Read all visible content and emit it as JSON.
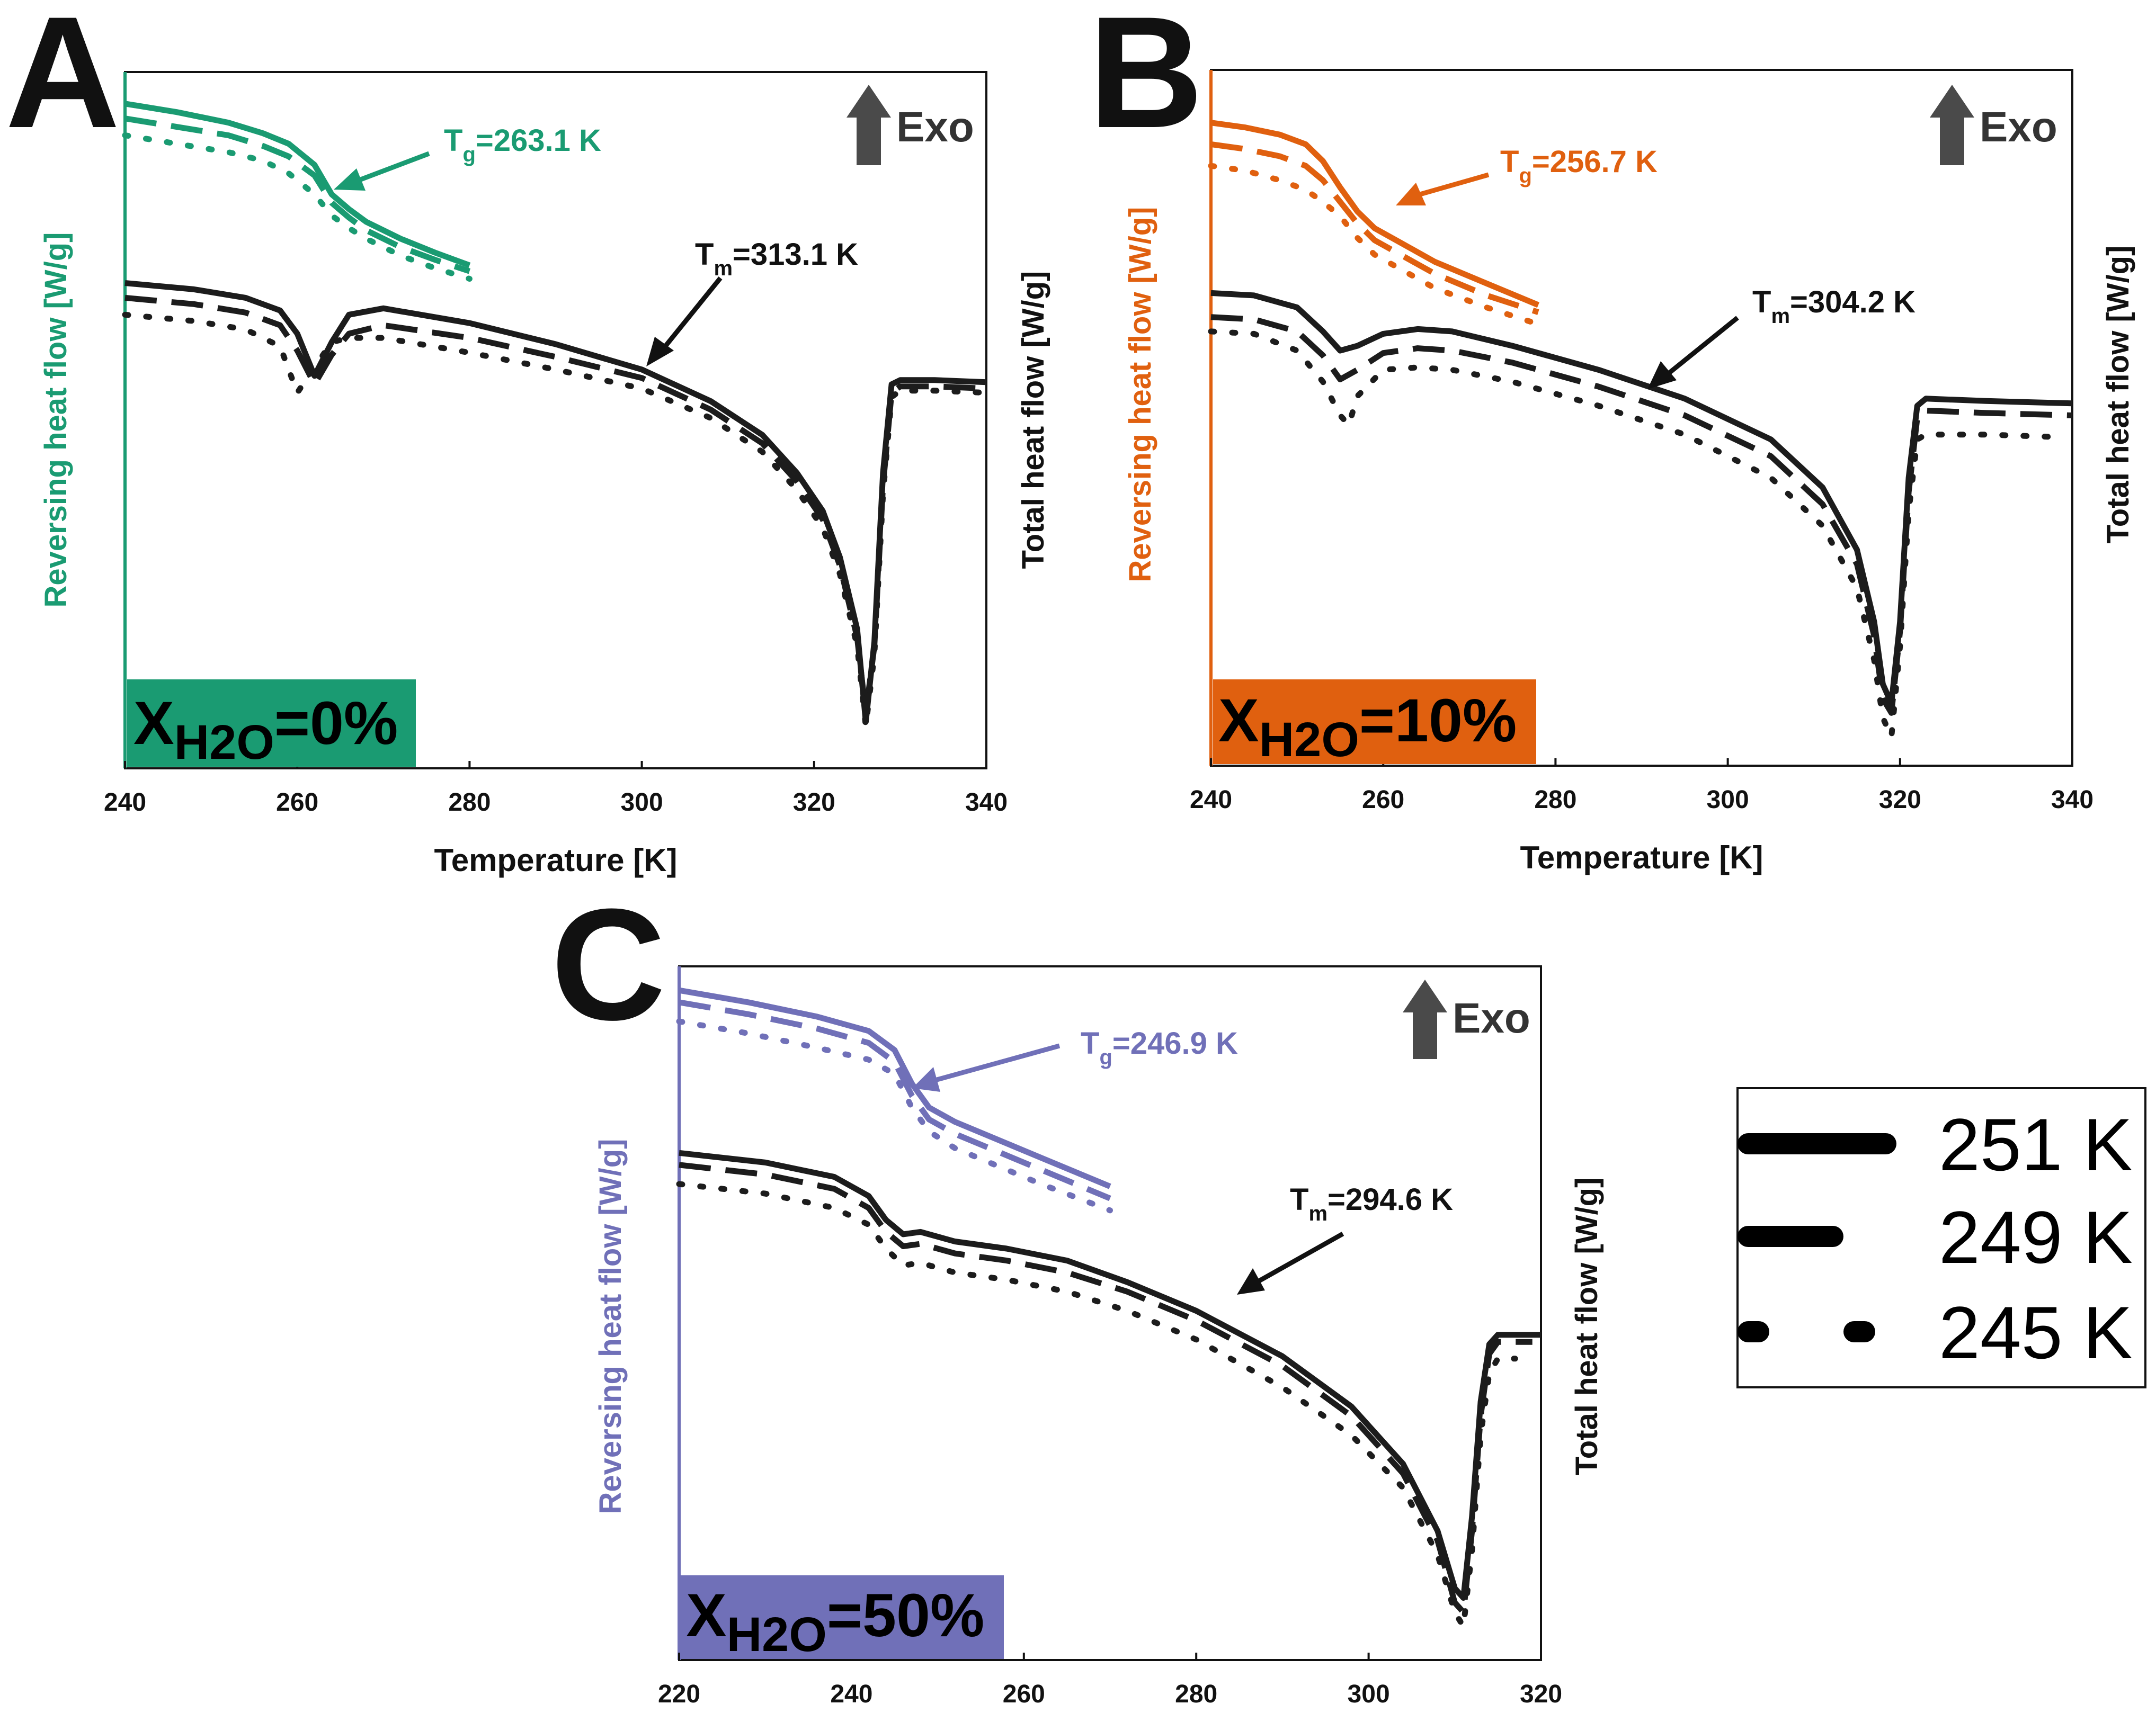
{
  "chart_data": [
    {
      "type": "line",
      "panel": "A",
      "xlabel": "Temperature [K]",
      "ylabel_left": "Reversing heat flow [W/g]",
      "ylabel_right": "Total heat flow [W/g]",
      "xlim": [
        240,
        340
      ],
      "xticks": [
        "240",
        "260",
        "280",
        "300",
        "320",
        "340"
      ],
      "accent_color": "#1a9b72",
      "exo_label": "Exo",
      "badge": {
        "x_symbol": "X",
        "subscript": "H2O",
        "value": "=0%"
      },
      "annotations": {
        "tg": {
          "symbol": "T",
          "subscript": "g",
          "value": "=263.1 K"
        },
        "tm": {
          "symbol": "T",
          "subscript": "m",
          "value": "=313.1 K"
        }
      },
      "series": [
        {
          "name": "251 K",
          "signal": "reversing",
          "x": [
            240,
            246,
            252,
            256,
            259,
            262,
            264,
            266,
            268,
            272,
            276,
            280
          ],
          "y": [
            9.25,
            9.05,
            8.8,
            8.55,
            8.3,
            7.8,
            7.1,
            6.75,
            6.45,
            6.05,
            5.72,
            5.42
          ]
        },
        {
          "name": "249 K",
          "signal": "reversing",
          "x": [
            240,
            246,
            252,
            256,
            259,
            262,
            264,
            266,
            268,
            272,
            276,
            280
          ],
          "y": [
            8.9,
            8.7,
            8.5,
            8.25,
            8.0,
            7.55,
            6.9,
            6.55,
            6.25,
            5.85,
            5.55,
            5.28
          ]
        },
        {
          "name": "245 K",
          "signal": "reversing",
          "x": [
            240,
            246,
            252,
            256,
            259,
            262,
            264,
            266,
            268,
            272,
            276,
            280
          ],
          "y": [
            8.5,
            8.3,
            8.1,
            7.9,
            7.6,
            7.1,
            6.6,
            6.3,
            6.05,
            5.65,
            5.35,
            5.1
          ]
        },
        {
          "name": "251 K",
          "signal": "total",
          "x": [
            240,
            248,
            254,
            258,
            260,
            262,
            264,
            266,
            270,
            280,
            290,
            300,
            308,
            314,
            318,
            321,
            323,
            325,
            326,
            327,
            328,
            329,
            330,
            334,
            340
          ],
          "y": [
            5.0,
            4.85,
            4.65,
            4.35,
            3.8,
            2.8,
            3.6,
            4.25,
            4.4,
            4.05,
            3.55,
            2.95,
            2.2,
            1.4,
            0.5,
            -0.4,
            -1.5,
            -3.2,
            -5.4,
            -3.5,
            0.5,
            2.6,
            2.7,
            2.7,
            2.65
          ]
        },
        {
          "name": "249 K",
          "signal": "total",
          "x": [
            240,
            248,
            254,
            258,
            260,
            262,
            264,
            266,
            270,
            280,
            290,
            300,
            308,
            314,
            318,
            321,
            323,
            325,
            326,
            327,
            328,
            329,
            330,
            334,
            340
          ],
          "y": [
            4.65,
            4.5,
            4.3,
            4.0,
            3.4,
            2.6,
            3.3,
            3.8,
            4.0,
            3.7,
            3.25,
            2.75,
            2.0,
            1.2,
            0.3,
            -0.6,
            -1.7,
            -3.4,
            -5.2,
            -3.6,
            0.2,
            2.4,
            2.55,
            2.55,
            2.5
          ]
        },
        {
          "name": "245 K",
          "signal": "total",
          "x": [
            240,
            248,
            254,
            258,
            260,
            262,
            264,
            266,
            270,
            280,
            290,
            300,
            308,
            314,
            318,
            321,
            323,
            325,
            326,
            327,
            328,
            329,
            330,
            334,
            340
          ],
          "y": [
            4.25,
            4.1,
            3.9,
            3.5,
            2.4,
            3.0,
            3.6,
            3.7,
            3.7,
            3.35,
            2.95,
            2.5,
            1.8,
            1.0,
            0.1,
            -0.8,
            -1.9,
            -3.6,
            -5.5,
            -3.8,
            0.0,
            2.3,
            2.45,
            2.45,
            2.4
          ]
        }
      ]
    },
    {
      "type": "line",
      "panel": "B",
      "xlabel": "Temperature [K]",
      "ylabel_left": "Reversing heat flow [W/g]",
      "ylabel_right": "Total heat flow [W/g]",
      "xlim": [
        240,
        340
      ],
      "xticks": [
        "240",
        "260",
        "280",
        "300",
        "320",
        "340"
      ],
      "accent_color": "#e0600f",
      "exo_label": "Exo",
      "badge": {
        "x_symbol": "X",
        "subscript": "H2O",
        "value": "=10%"
      },
      "annotations": {
        "tg": {
          "symbol": "T",
          "subscript": "g",
          "value": "=256.7 K"
        },
        "tm": {
          "symbol": "T",
          "subscript": "m",
          "value": "=304.2 K"
        }
      },
      "series": [
        {
          "name": "251 K",
          "signal": "reversing",
          "x": [
            240,
            244,
            248,
            251,
            253,
            255,
            257,
            259,
            262,
            266,
            272,
            278
          ],
          "y": [
            8.9,
            8.8,
            8.65,
            8.45,
            8.1,
            7.55,
            7.05,
            6.7,
            6.4,
            6.0,
            5.55,
            5.1
          ]
        },
        {
          "name": "249 K",
          "signal": "reversing",
          "x": [
            240,
            244,
            248,
            251,
            253,
            255,
            257,
            259,
            262,
            266,
            272,
            278
          ],
          "y": [
            8.45,
            8.35,
            8.2,
            8.0,
            7.7,
            7.25,
            6.8,
            6.45,
            6.15,
            5.75,
            5.3,
            4.95
          ]
        },
        {
          "name": "245 K",
          "signal": "reversing",
          "x": [
            240,
            244,
            248,
            251,
            253,
            255,
            257,
            259,
            262,
            266,
            272,
            278
          ],
          "y": [
            8.0,
            7.9,
            7.7,
            7.5,
            7.25,
            6.95,
            6.5,
            6.15,
            5.85,
            5.45,
            5.05,
            4.7
          ]
        },
        {
          "name": "251 K",
          "signal": "total",
          "x": [
            240,
            245,
            250,
            253,
            255,
            257,
            260,
            264,
            268,
            275,
            285,
            295,
            305,
            311,
            315,
            317,
            318,
            319,
            320,
            321,
            322,
            323,
            330,
            340
          ],
          "y": [
            5.35,
            5.3,
            5.05,
            4.55,
            4.15,
            4.25,
            4.5,
            4.6,
            4.55,
            4.25,
            3.75,
            3.15,
            2.3,
            1.3,
            0.0,
            -1.5,
            -2.8,
            -3.2,
            -1.5,
            1.5,
            3.0,
            3.15,
            3.1,
            3.05
          ]
        },
        {
          "name": "249 K",
          "signal": "total",
          "x": [
            240,
            245,
            250,
            253,
            255,
            257,
            260,
            264,
            268,
            275,
            285,
            295,
            305,
            311,
            315,
            317,
            318,
            319,
            320,
            321,
            322,
            323,
            330,
            340
          ],
          "y": [
            4.85,
            4.8,
            4.55,
            4.05,
            3.55,
            3.75,
            4.1,
            4.2,
            4.15,
            3.9,
            3.4,
            2.8,
            1.95,
            0.95,
            -0.3,
            -1.8,
            -3.1,
            -3.4,
            -1.7,
            1.2,
            2.75,
            2.9,
            2.85,
            2.8
          ]
        },
        {
          "name": "245 K",
          "signal": "total",
          "x": [
            240,
            245,
            250,
            253,
            255,
            256,
            257,
            260,
            264,
            268,
            275,
            285,
            295,
            305,
            311,
            315,
            317,
            318,
            319,
            320,
            321,
            322,
            323,
            330,
            338
          ],
          "y": [
            4.55,
            4.5,
            4.15,
            3.5,
            2.8,
            2.6,
            3.2,
            3.75,
            3.8,
            3.75,
            3.5,
            3.0,
            2.4,
            1.5,
            0.5,
            -0.8,
            -2.3,
            -3.5,
            -3.9,
            -2.0,
            0.8,
            2.3,
            2.4,
            2.4,
            2.35
          ]
        }
      ]
    },
    {
      "type": "line",
      "panel": "C",
      "xlabel": "",
      "ylabel_left": "Reversing heat flow [W/g]",
      "ylabel_right": "Total heat flow [W/g]",
      "xlim": [
        220,
        320
      ],
      "xticks": [
        "220",
        "240",
        "260",
        "280",
        "300",
        "320"
      ],
      "accent_color": "#7070b8",
      "exo_label": "Exo",
      "badge": {
        "x_symbol": "X",
        "subscript": "H2O",
        "value": "=50%"
      },
      "annotations": {
        "tg": {
          "symbol": "T",
          "subscript": "g",
          "value": "=246.9 K"
        },
        "tm": {
          "symbol": "T",
          "subscript": "m",
          "value": "=294.6 K"
        }
      },
      "series": [
        {
          "name": "251 K",
          "signal": "reversing",
          "x": [
            220,
            228,
            236,
            242,
            245,
            247,
            249,
            252,
            256,
            262,
            270
          ],
          "y": [
            9.5,
            9.25,
            8.95,
            8.65,
            8.25,
            7.55,
            7.05,
            6.75,
            6.45,
            6.0,
            5.4
          ]
        },
        {
          "name": "249 K",
          "signal": "reversing",
          "x": [
            220,
            228,
            236,
            242,
            245,
            247,
            249,
            252,
            256,
            262,
            270
          ],
          "y": [
            9.25,
            9.0,
            8.7,
            8.4,
            8.0,
            7.3,
            6.8,
            6.5,
            6.2,
            5.75,
            5.15
          ]
        },
        {
          "name": "245 K",
          "signal": "reversing",
          "x": [
            220,
            228,
            236,
            242,
            245,
            247,
            249,
            252,
            256,
            262,
            270
          ],
          "y": [
            8.85,
            8.6,
            8.3,
            8.05,
            7.75,
            7.05,
            6.55,
            6.2,
            5.9,
            5.45,
            4.9
          ]
        },
        {
          "name": "251 K",
          "signal": "total",
          "x": [
            220,
            230,
            238,
            242,
            244,
            246,
            248,
            252,
            258,
            265,
            272,
            280,
            290,
            298,
            304,
            308,
            310,
            311,
            312,
            313,
            314,
            315,
            320
          ],
          "y": [
            6.1,
            5.9,
            5.6,
            5.2,
            4.7,
            4.4,
            4.45,
            4.25,
            4.1,
            3.85,
            3.4,
            2.8,
            1.85,
            0.8,
            -0.4,
            -1.8,
            -3.0,
            -3.2,
            -1.5,
            0.9,
            2.1,
            2.3,
            2.3
          ]
        },
        {
          "name": "249 K",
          "signal": "total",
          "x": [
            220,
            230,
            238,
            242,
            244,
            246,
            248,
            252,
            258,
            265,
            272,
            280,
            290,
            298,
            304,
            308,
            310,
            311,
            312,
            313,
            314,
            315,
            319
          ],
          "y": [
            5.85,
            5.65,
            5.35,
            4.95,
            4.45,
            4.15,
            4.2,
            4.0,
            3.85,
            3.6,
            3.2,
            2.6,
            1.65,
            0.6,
            -0.6,
            -2.0,
            -3.3,
            -3.5,
            -1.8,
            0.6,
            1.9,
            2.15,
            2.15
          ]
        },
        {
          "name": "245 K",
          "signal": "total",
          "x": [
            220,
            230,
            238,
            242,
            244,
            246,
            248,
            252,
            258,
            265,
            272,
            280,
            290,
            298,
            304,
            308,
            310,
            311,
            312,
            313,
            314,
            315,
            317
          ],
          "y": [
            5.45,
            5.25,
            4.95,
            4.6,
            4.1,
            3.75,
            3.8,
            3.6,
            3.45,
            3.2,
            2.8,
            2.2,
            1.2,
            0.2,
            -0.9,
            -2.3,
            -3.5,
            -3.8,
            -2.2,
            0.2,
            1.5,
            1.8,
            1.8
          ]
        }
      ]
    }
  ],
  "legend": {
    "items": [
      {
        "label": "251 K",
        "style": "solid"
      },
      {
        "label": "249 K",
        "style": "dashed"
      },
      {
        "label": "245 K",
        "style": "dotted"
      }
    ]
  },
  "colors": {
    "total": "#1c1c1c",
    "axis": "#111111",
    "exo_arrow": "#4a4a4a"
  }
}
